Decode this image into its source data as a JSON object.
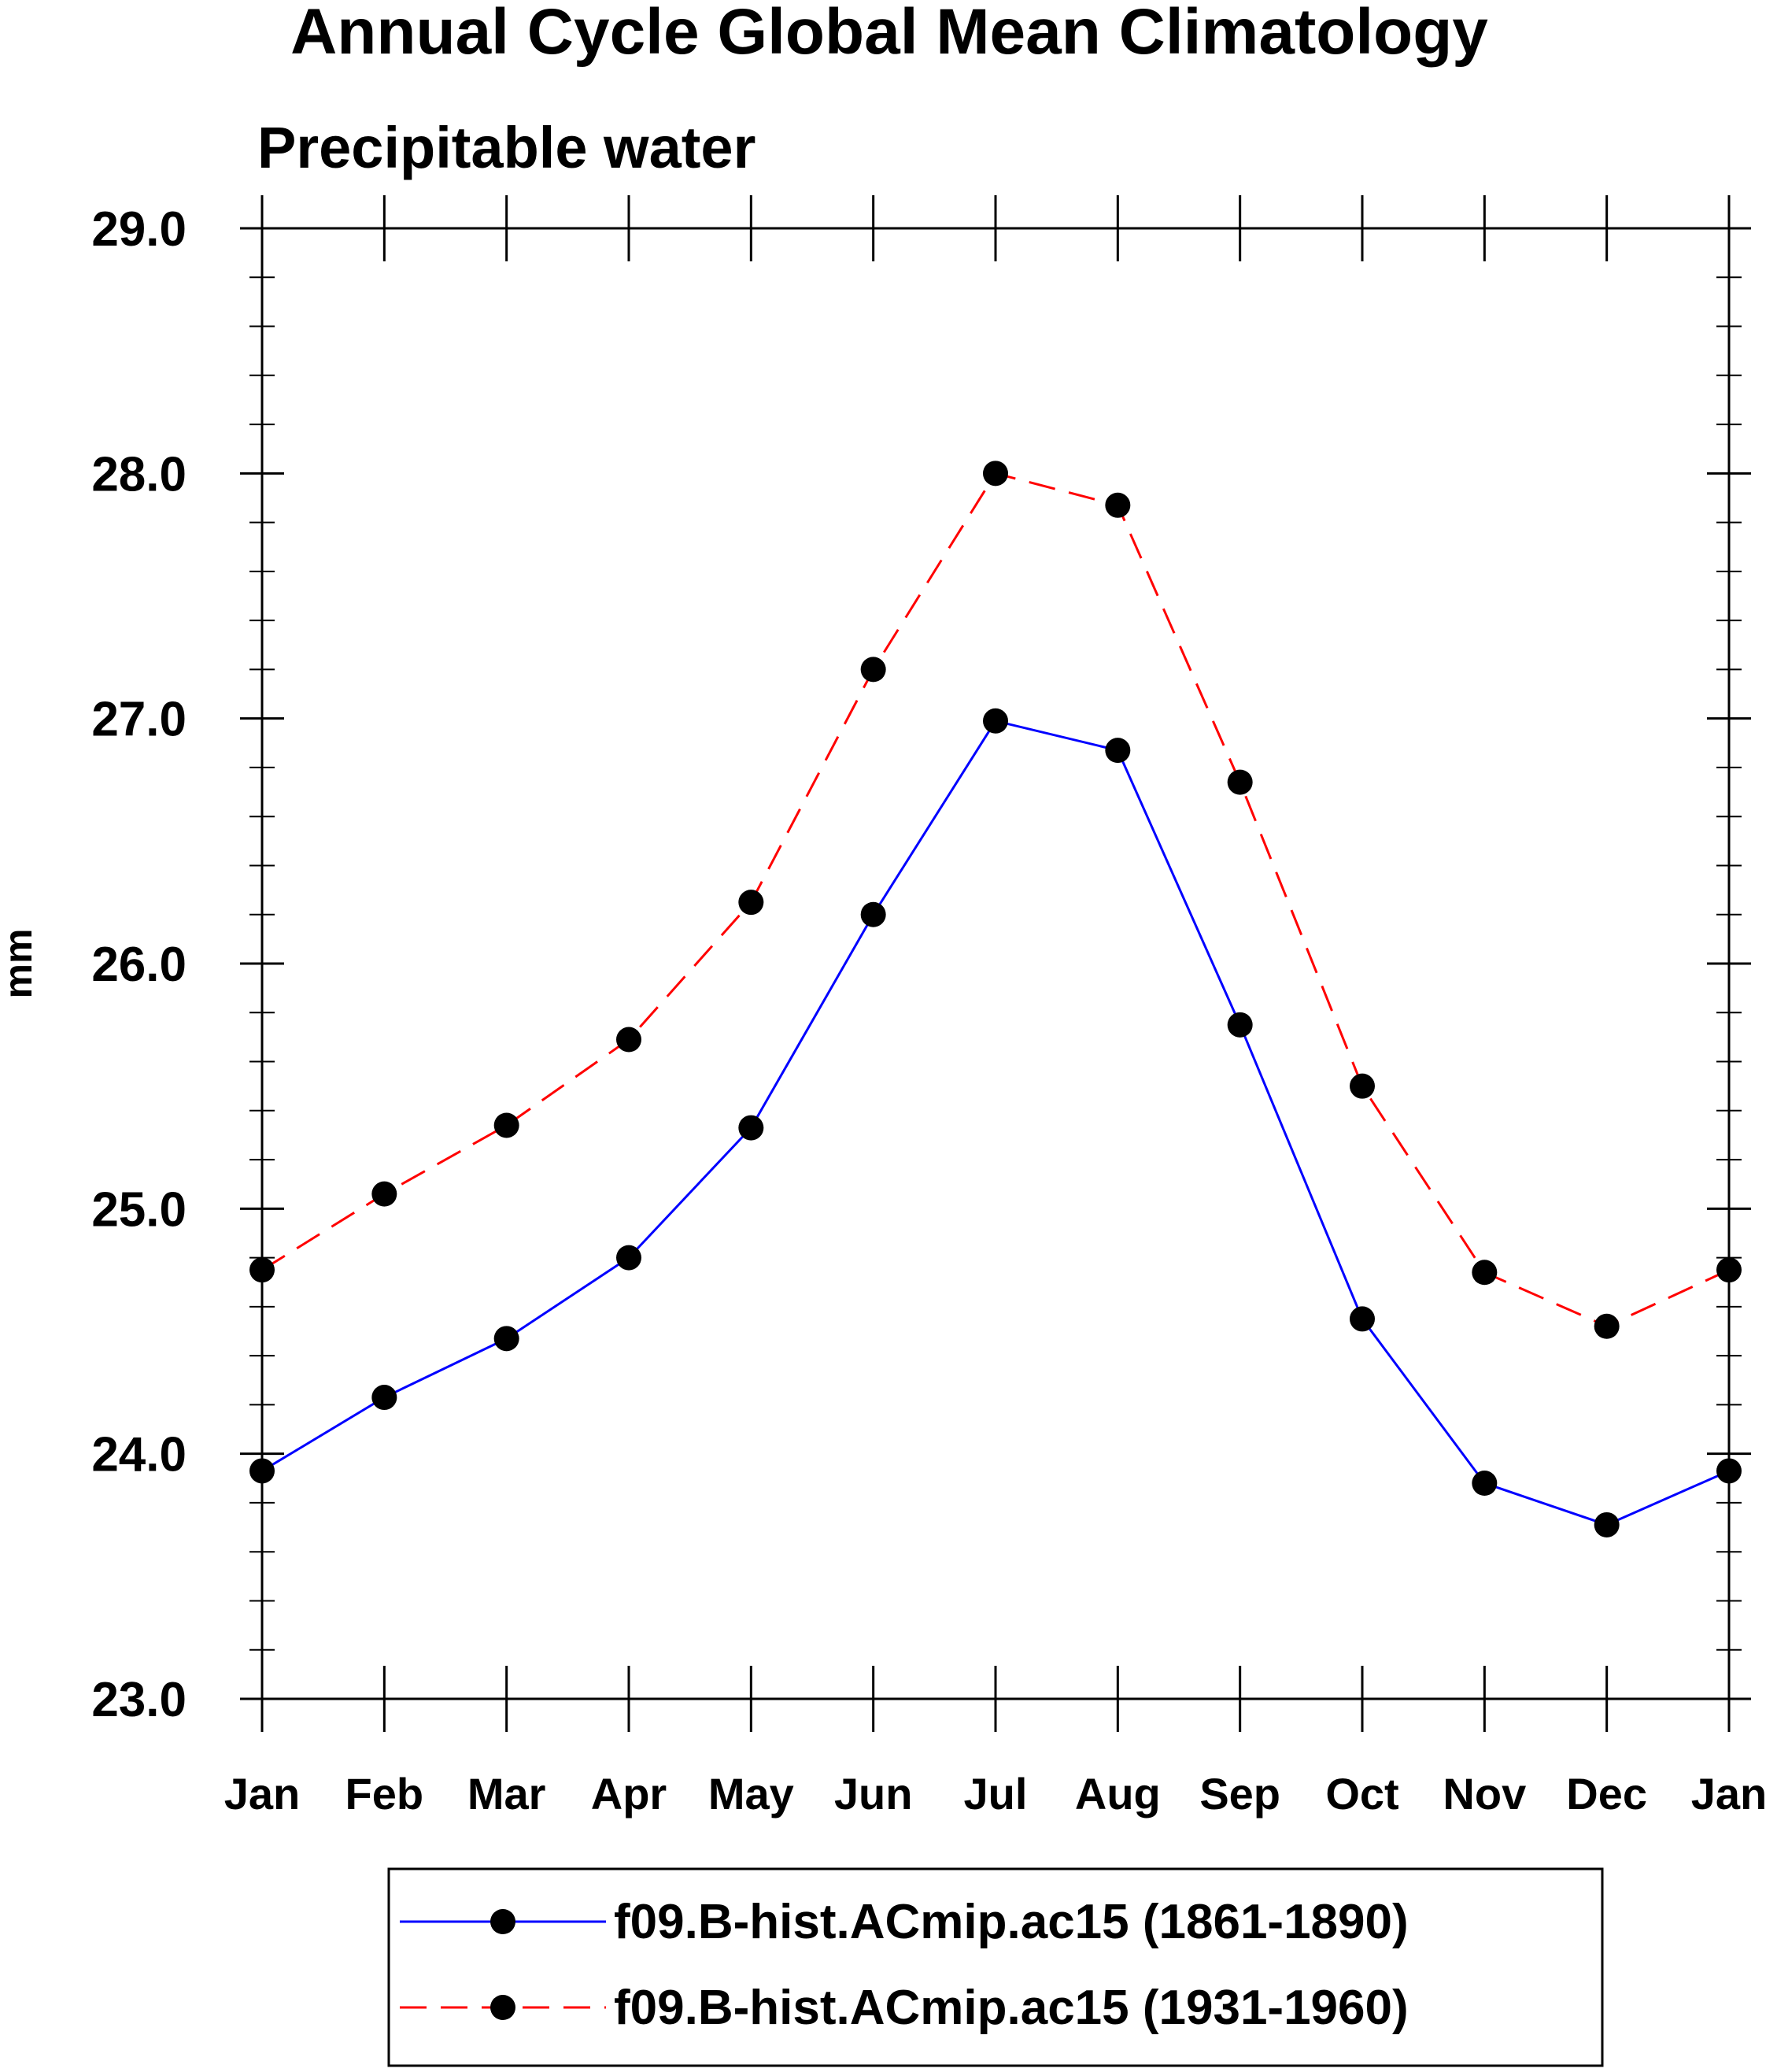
{
  "chart_data": {
    "type": "line",
    "title": "Annual Cycle Global Mean Climatology",
    "subtitle": "Precipitable water",
    "xlabel": "",
    "ylabel": "mm",
    "categories": [
      "Jan",
      "Feb",
      "Mar",
      "Apr",
      "May",
      "Jun",
      "Jul",
      "Aug",
      "Sep",
      "Oct",
      "Nov",
      "Dec",
      "Jan"
    ],
    "ylim": [
      23.0,
      29.0
    ],
    "yticks": [
      "23.0",
      "24.0",
      "25.0",
      "26.0",
      "27.0",
      "28.0",
      "29.0"
    ],
    "minor_tick_step": 0.2,
    "grid": false,
    "legend_position": "bottom",
    "series": [
      {
        "name": "f09.B-hist.ACmip.ac15 (1861-1890)",
        "color": "#0000ff",
        "line_style": "solid",
        "marker": "filled-circle",
        "values": [
          23.93,
          24.23,
          24.47,
          24.8,
          25.33,
          26.2,
          26.99,
          26.87,
          25.75,
          24.55,
          23.88,
          23.71,
          23.93
        ]
      },
      {
        "name": "f09.B-hist.ACmip.ac15 (1931-1960)",
        "color": "#ff0000",
        "line_style": "dashed",
        "marker": "filled-circle",
        "values": [
          24.75,
          25.06,
          25.34,
          25.69,
          26.25,
          27.2,
          28.0,
          27.87,
          26.74,
          25.5,
          24.74,
          24.52,
          24.75
        ]
      }
    ]
  }
}
